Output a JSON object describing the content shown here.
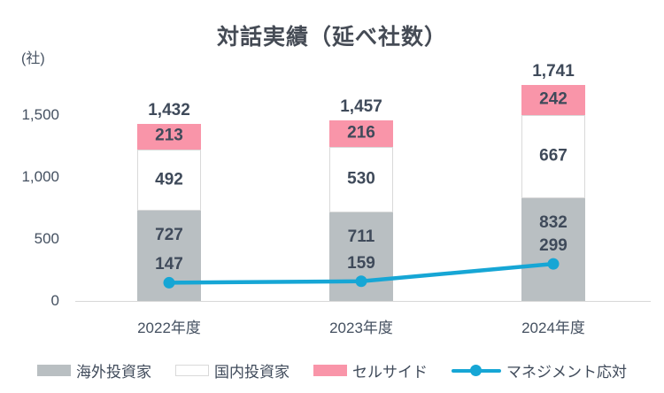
{
  "chart_data": {
    "type": "bar",
    "subtype": "stacked-bar-with-line",
    "title": "対話実績（延べ社数）",
    "unit_label": "(社)",
    "categories": [
      "2022年度",
      "2023年度",
      "2024年度"
    ],
    "series": [
      {
        "name": "海外投資家",
        "kind": "bar",
        "color": "#b9bfc2",
        "values": [
          727,
          711,
          832
        ]
      },
      {
        "name": "国内投資家",
        "kind": "bar",
        "color": "#ffffff",
        "border_color": "#d9d9d9",
        "values": [
          492,
          530,
          667
        ]
      },
      {
        "name": "セルサイド",
        "kind": "bar",
        "color": "#f995a9",
        "values": [
          213,
          216,
          242
        ]
      },
      {
        "name": "マネジメント応対",
        "kind": "line",
        "color": "#16a6d5",
        "values": [
          147,
          159,
          299
        ]
      }
    ],
    "totals": [
      "1,432",
      "1,457",
      "1,741"
    ],
    "yticks": [
      {
        "value": 0,
        "label": "0"
      },
      {
        "value": 500,
        "label": "500"
      },
      {
        "value": 1000,
        "label": "1,000"
      },
      {
        "value": 1500,
        "label": "1,500"
      }
    ],
    "ylim": [
      0,
      1750
    ],
    "grid": false,
    "legend_position": "bottom",
    "text_color": "#3f4a5a",
    "axis_color": "#d8d8d8"
  }
}
